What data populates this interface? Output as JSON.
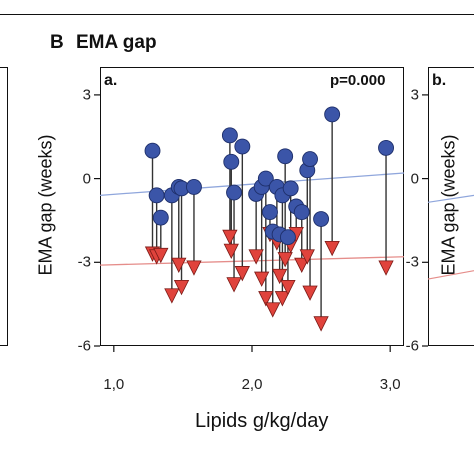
{
  "header": {
    "section_label": "B",
    "section_title": "EMA gap"
  },
  "panels": {
    "main": "a.",
    "right": "b."
  },
  "pvalue": "p=0.000",
  "right_panel": {
    "ylabel": "EMA gap (weeks)",
    "y_ticks": [
      "3",
      "0",
      "-3",
      "-6"
    ]
  },
  "colors": {
    "circle": "#3b55a8",
    "triangle": "#e0433c",
    "blue_line": "#8fa6dc",
    "red_line": "#e58d8a",
    "connector": "#333333"
  },
  "chart_data": {
    "type": "scatter",
    "xlabel": "Lipids g/kg/day",
    "ylabel": "EMA gap (weeks)",
    "xlim": [
      0.9,
      3.1
    ],
    "ylim": [
      -6,
      4
    ],
    "x_ticks": [
      1.0,
      2.0,
      3.0
    ],
    "x_tick_labels": [
      "1,0",
      "2,0",
      "3,0"
    ],
    "y_ticks": [
      3,
      0,
      -3,
      -6
    ],
    "y_tick_labels": [
      "3",
      "0",
      "-3",
      "-6"
    ],
    "grid": false,
    "fit_lines": [
      {
        "name": "circles",
        "x": [
          0.9,
          3.1
        ],
        "y": [
          -0.6,
          0.2
        ]
      },
      {
        "name": "triangles",
        "x": [
          0.9,
          3.1
        ],
        "y": [
          -3.1,
          -2.8
        ]
      }
    ],
    "pairs": [
      {
        "x": 1.28,
        "circle": 1.0,
        "triangle": -2.7
      },
      {
        "x": 1.31,
        "circle": -0.6,
        "triangle": -2.8
      },
      {
        "x": 1.34,
        "circle": -1.4,
        "triangle": -2.75
      },
      {
        "x": 1.42,
        "circle": -0.6,
        "triangle": -4.2
      },
      {
        "x": 1.47,
        "circle": -0.3,
        "triangle": -3.1
      },
      {
        "x": 1.49,
        "circle": -0.35,
        "triangle": -3.9
      },
      {
        "x": 1.58,
        "circle": -0.3,
        "triangle": -3.2
      },
      {
        "x": 1.84,
        "circle": 1.55,
        "triangle": -2.1
      },
      {
        "x": 1.85,
        "circle": 0.6,
        "triangle": -2.6
      },
      {
        "x": 1.87,
        "circle": -0.5,
        "triangle": -3.8
      },
      {
        "x": 1.93,
        "circle": 1.15,
        "triangle": -3.4
      },
      {
        "x": 2.03,
        "circle": -0.55,
        "triangle": -2.8
      },
      {
        "x": 2.07,
        "circle": -0.3,
        "triangle": -3.6
      },
      {
        "x": 2.1,
        "circle": 0.0,
        "triangle": -4.3
      },
      {
        "x": 2.13,
        "circle": -1.2,
        "triangle": -2.0
      },
      {
        "x": 2.15,
        "circle": -1.9,
        "triangle": -4.7
      },
      {
        "x": 2.18,
        "circle": -0.3,
        "triangle": -2.3
      },
      {
        "x": 2.2,
        "circle": -2.0,
        "triangle": -3.5
      },
      {
        "x": 2.22,
        "circle": -0.6,
        "triangle": -4.3
      },
      {
        "x": 2.24,
        "circle": 0.8,
        "triangle": -2.9
      },
      {
        "x": 2.26,
        "circle": -2.1,
        "triangle": -3.9
      },
      {
        "x": 2.28,
        "circle": -0.35,
        "triangle": -2.4
      },
      {
        "x": 2.32,
        "circle": -1.0,
        "triangle": -2.0
      },
      {
        "x": 2.36,
        "circle": -1.2,
        "triangle": -3.1
      },
      {
        "x": 2.4,
        "circle": 0.3,
        "triangle": -2.8
      },
      {
        "x": 2.42,
        "circle": 0.7,
        "triangle": -4.1
      },
      {
        "x": 2.5,
        "circle": -1.45,
        "triangle": -5.2
      },
      {
        "x": 2.58,
        "circle": 2.3,
        "triangle": -2.5
      },
      {
        "x": 2.97,
        "circle": 1.1,
        "triangle": -3.2
      }
    ]
  }
}
